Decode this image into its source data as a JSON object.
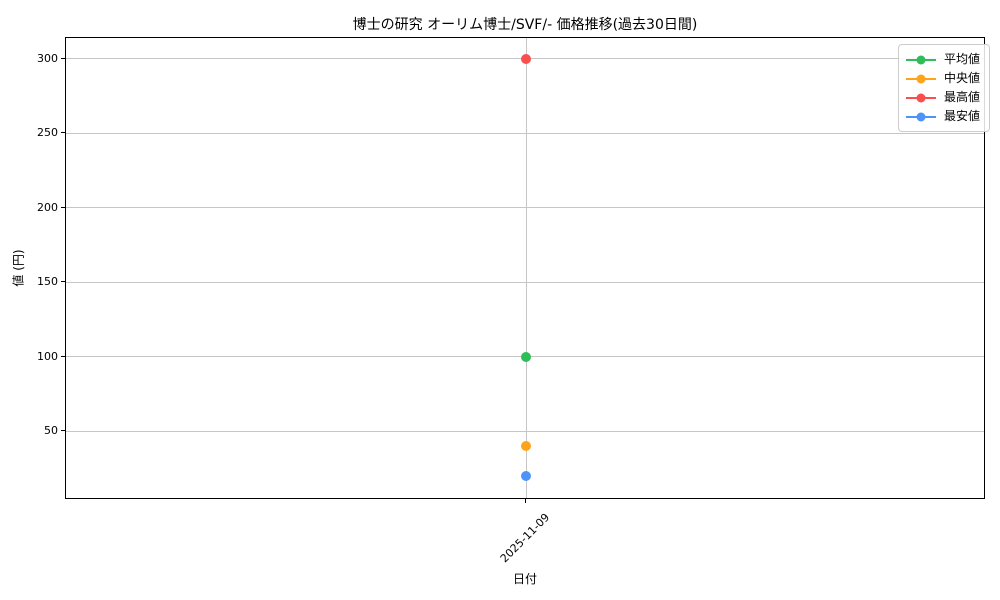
{
  "chart_data": {
    "type": "line",
    "title": "博士の研究 オーリム博士/SVF/- 価格推移(過去30日間)",
    "xlabel": "日付",
    "ylabel": "値 (円)",
    "x": [
      "2025-11-09"
    ],
    "series": [
      {
        "name": "平均値",
        "color": "#2ebd57",
        "values": [
          100
        ]
      },
      {
        "name": "中央値",
        "color": "#ffa319",
        "values": [
          40
        ]
      },
      {
        "name": "最高値",
        "color": "#fb4f4f",
        "values": [
          300
        ]
      },
      {
        "name": "最安値",
        "color": "#4e94f8",
        "values": [
          20
        ]
      }
    ],
    "yticks": [
      50,
      100,
      150,
      200,
      250,
      300
    ],
    "ylim": [
      4,
      314
    ],
    "grid": true,
    "legend_position": "upper right",
    "colors": {
      "grid": "#c6c6c6",
      "spine": "#000000",
      "legend_border": "#cccccc"
    }
  }
}
